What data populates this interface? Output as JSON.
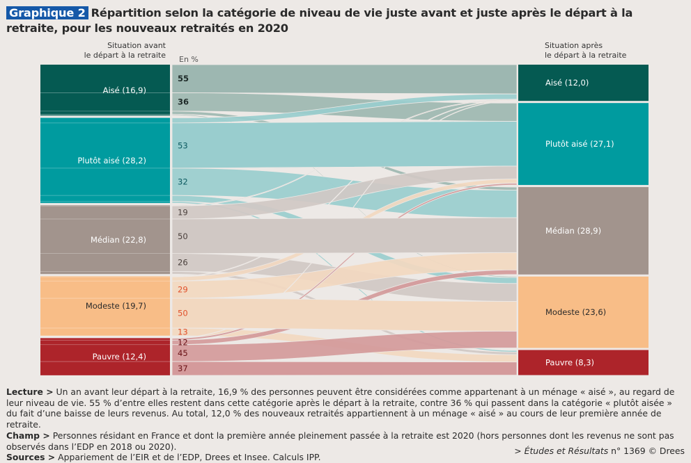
{
  "header": {
    "badge": "Graphique 2",
    "title": "Répartition selon la catégorie de niveau de vie juste avant et juste après le départ à la retraite, pour les nouveaux retraités en 2020"
  },
  "chart_data": {
    "type": "sankey",
    "title": "Répartition selon la catégorie de niveau de vie juste avant et juste après le départ à la retraite, pour les nouveaux retraités en 2020",
    "unit": "En %",
    "left_axis_title": "Situation avant le départ à la retraite",
    "right_axis_title": "Situation après le départ à la retraite",
    "categories": [
      "Aisé",
      "Plutôt aisé",
      "Médian",
      "Modeste",
      "Pauvre"
    ],
    "colors": {
      "Aisé": "#055a52",
      "Plutôt aisé": "#009b9f",
      "Médian": "#a2948d",
      "Modeste": "#f8bd87",
      "Pauvre": "#ad242a"
    },
    "flow_colors": {
      "Aisé": "#9db7b1",
      "Plutôt aisé": "#99cdce",
      "Médian": "#d0c8c4",
      "Modeste": "#f2d8c0",
      "Pauvre": "#d49a9b"
    },
    "label_colors": {
      "Aisé": "#1e2a28",
      "Plutôt aisé": "#0c5a60",
      "Médian": "#4a403c",
      "Modeste": "#e0502a",
      "Pauvre": "#6a1216"
    },
    "before": [
      {
        "name": "Aisé",
        "value": 16.9,
        "label": "Aisé (16,9)"
      },
      {
        "name": "Plutôt aisé",
        "value": 28.2,
        "label": "Plutôt aisé (28,2)"
      },
      {
        "name": "Médian",
        "value": 22.8,
        "label": "Médian (22,8)"
      },
      {
        "name": "Modeste",
        "value": 19.7,
        "label": "Modeste (19,7)"
      },
      {
        "name": "Pauvre",
        "value": 12.4,
        "label": "Pauvre (12,4)"
      }
    ],
    "after": [
      {
        "name": "Aisé",
        "value": 12.0,
        "label": "Aisé (12,0)"
      },
      {
        "name": "Plutôt aisé",
        "value": 27.1,
        "label": "Plutôt aisé (27,1)"
      },
      {
        "name": "Médian",
        "value": 28.9,
        "label": "Médian (28,9)"
      },
      {
        "name": "Modeste",
        "value": 23.6,
        "label": "Modeste (23,6)"
      },
      {
        "name": "Pauvre",
        "value": 8.3,
        "label": "Pauvre (8,3)"
      }
    ],
    "transitions_pct_of_origin": {
      "Aisé": {
        "Aisé": 55,
        "Plutôt aisé": 36,
        "Médian": 6,
        "Modeste": 2,
        "Pauvre": 1
      },
      "Plutôt aisé": {
        "Aisé": 6,
        "Plutôt aisé": 53,
        "Médian": 32,
        "Modeste": 7,
        "Pauvre": 2
      },
      "Médian": {
        "Aisé": 1,
        "Plutôt aisé": 19,
        "Médian": 50,
        "Modeste": 26,
        "Pauvre": 4
      },
      "Modeste": {
        "Aisé": 1,
        "Plutôt aisé": 7,
        "Médian": 29,
        "Modeste": 50,
        "Pauvre": 13
      },
      "Pauvre": {
        "Aisé": 1,
        "Plutôt aisé": 5,
        "Médian": 12,
        "Modeste": 45,
        "Pauvre": 37
      }
    },
    "flow_labels": [
      {
        "from": "Aisé",
        "to": "Aisé",
        "text": "55"
      },
      {
        "from": "Aisé",
        "to": "Plutôt aisé",
        "text": "36"
      },
      {
        "from": "Plutôt aisé",
        "to": "Plutôt aisé",
        "text": "53"
      },
      {
        "from": "Plutôt aisé",
        "to": "Médian",
        "text": "32"
      },
      {
        "from": "Médian",
        "to": "Plutôt aisé",
        "text": "19"
      },
      {
        "from": "Médian",
        "to": "Médian",
        "text": "50"
      },
      {
        "from": "Médian",
        "to": "Modeste",
        "text": "26"
      },
      {
        "from": "Modeste",
        "to": "Médian",
        "text": "29"
      },
      {
        "from": "Modeste",
        "to": "Modeste",
        "text": "50"
      },
      {
        "from": "Modeste",
        "to": "Pauvre",
        "text": "13"
      },
      {
        "from": "Pauvre",
        "to": "Médian",
        "text": "12"
      },
      {
        "from": "Pauvre",
        "to": "Modeste",
        "text": "45"
      },
      {
        "from": "Pauvre",
        "to": "Pauvre",
        "text": "37"
      }
    ]
  },
  "axis": {
    "left_line1": "Situation avant",
    "left_line2": "le départ à la retraite",
    "right_line1": "Situation après",
    "right_line2": "le départ à la retraite",
    "unit": "En %"
  },
  "notes": {
    "lecture_label": "Lecture >",
    "lecture_text": " Un an avant leur départ à la retraite, 16,9 % des personnes peuvent être considérées comme appartenant à un ménage « aisé », au regard de leur niveau de vie. 55 % d’entre elles restent dans cette catégorie après le départ à la retraite, contre 36 % qui passent dans la catégorie « plutôt aisée » du fait d’une baisse de leurs revenus. Au total, 12,0 % des nouveaux retraités appartiennent à un ménage « aisé » au cours de leur première année de retraite.",
    "champ_label": "Champ >",
    "champ_text": " Personnes résidant en France et dont la première année pleinement passée à la retraite est 2020 (hors personnes dont les revenus ne sont pas observés dans l’EDP en 2018 ou 2020).",
    "sources_label": "Sources >",
    "sources_text": " Appariement de l’EIR et de l’EDP, Drees et Insee. Calculs IPP."
  },
  "credit": {
    "prefix": "> ",
    "publication": "Études et Résultats",
    "suffix": " n° 1369 © Drees"
  }
}
